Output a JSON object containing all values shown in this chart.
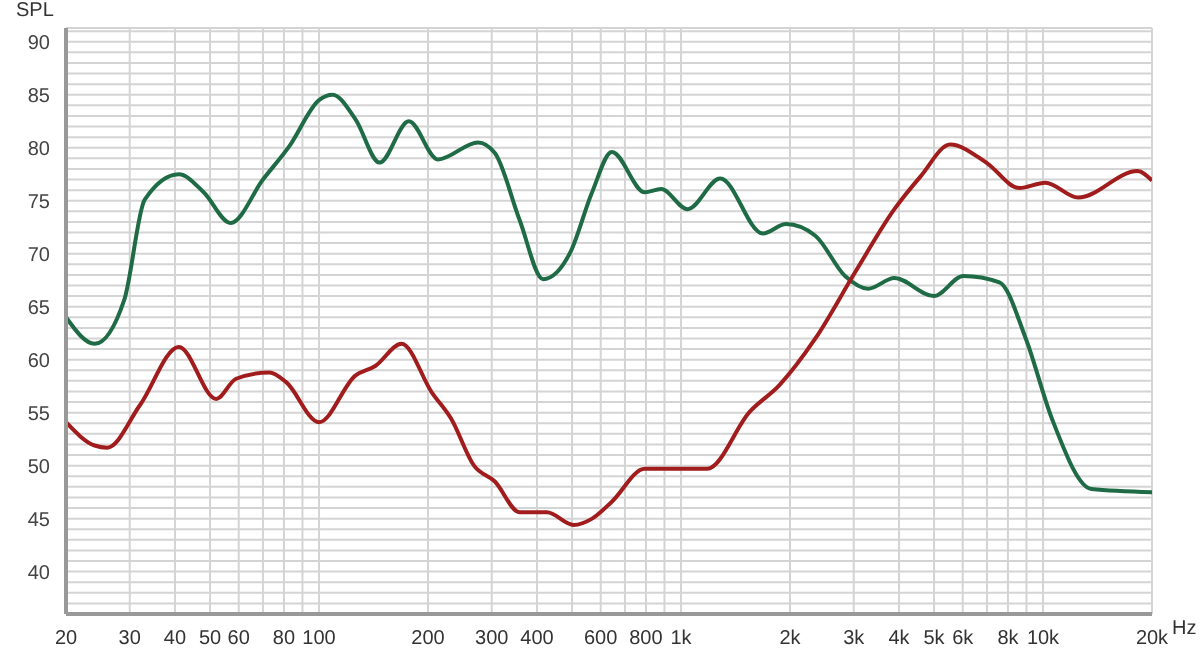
{
  "chart_data": {
    "type": "line",
    "ylabel": "SPL",
    "log": "x",
    "grid": true,
    "line_style": "solid",
    "xlim": [
      20,
      20000
    ],
    "ylim": [
      36,
      91.3
    ],
    "xticks": [
      20,
      30,
      40,
      50,
      60,
      {
        "value": 70,
        "label": null
      },
      80,
      {
        "value": 90,
        "label": null
      },
      100,
      200,
      300,
      400,
      {
        "value": 500,
        "label": null
      },
      600,
      {
        "value": 700,
        "label": null
      },
      800,
      {
        "value": 900,
        "label": null
      },
      {
        "value": 1000,
        "label": "1k"
      },
      {
        "value": 2000,
        "label": "2k"
      },
      {
        "value": 3000,
        "label": "3k"
      },
      {
        "value": 4000,
        "label": "4k"
      },
      {
        "value": 5000,
        "label": "5k"
      },
      {
        "value": 6000,
        "label": "6k"
      },
      {
        "value": 7000,
        "label": null
      },
      {
        "value": 8000,
        "label": "8k"
      },
      {
        "value": 9000,
        "label": null
      },
      {
        "value": 10000,
        "label": "10k"
      },
      {
        "value": 20000,
        "label": "20k"
      }
    ],
    "xlabel": "Hz",
    "yticks": [
      {
        "value": 37,
        "label": null
      },
      {
        "value": 38,
        "label": null
      },
      {
        "value": 39,
        "label": null
      },
      40,
      {
        "value": 41,
        "label": null
      },
      {
        "value": 42,
        "label": null
      },
      {
        "value": 43,
        "label": null
      },
      {
        "value": 44,
        "label": null
      },
      45,
      {
        "value": 46,
        "label": null
      },
      {
        "value": 47,
        "label": null
      },
      {
        "value": 48,
        "label": null
      },
      {
        "value": 49,
        "label": null
      },
      50,
      {
        "value": 51,
        "label": null
      },
      {
        "value": 52,
        "label": null
      },
      {
        "value": 53,
        "label": null
      },
      {
        "value": 54,
        "label": null
      },
      55,
      {
        "value": 56,
        "label": null
      },
      {
        "value": 57,
        "label": null
      },
      {
        "value": 58,
        "label": null
      },
      {
        "value": 59,
        "label": null
      },
      60,
      {
        "value": 61,
        "label": null
      },
      {
        "value": 62,
        "label": null
      },
      {
        "value": 63,
        "label": null
      },
      {
        "value": 64,
        "label": null
      },
      65,
      {
        "value": 66,
        "label": null
      },
      {
        "value": 67,
        "label": null
      },
      {
        "value": 68,
        "label": null
      },
      {
        "value": 69,
        "label": null
      },
      70,
      {
        "value": 71,
        "label": null
      },
      {
        "value": 72,
        "label": null
      },
      {
        "value": 73,
        "label": null
      },
      {
        "value": 74,
        "label": null
      },
      75,
      {
        "value": 76,
        "label": null
      },
      {
        "value": 77,
        "label": null
      },
      {
        "value": 78,
        "label": null
      },
      {
        "value": 79,
        "label": null
      },
      80,
      {
        "value": 81,
        "label": null
      },
      {
        "value": 82,
        "label": null
      },
      {
        "value": 83,
        "label": null
      },
      {
        "value": 84,
        "label": null
      },
      85,
      {
        "value": 86,
        "label": null
      },
      {
        "value": 87,
        "label": null
      },
      {
        "value": 88,
        "label": null
      },
      {
        "value": 89,
        "label": null
      },
      90,
      {
        "value": 91,
        "label": null
      }
    ],
    "series": [
      {
        "color": "#1e6b45",
        "x": [
          20,
          24,
          29,
          33,
          41,
          48,
          57,
          70,
          83,
          100,
          109,
          126,
          147,
          177,
          213,
          275,
          306,
          358,
          416,
          494,
          568,
          644,
          794,
          881,
          1042,
          1283,
          1683,
          1950,
          2350,
          2838,
          3288,
          3885,
          4990,
          6025,
          7580,
          8960,
          10590,
          13600,
          20000
        ],
        "values": [
          64.0,
          61.5,
          65.7,
          75.1,
          77.5,
          75.8,
          72.9,
          77.0,
          80.2,
          84.5,
          85.0,
          82.7,
          78.6,
          82.5,
          78.9,
          80.5,
          79.5,
          73.2,
          67.6,
          70.1,
          75.8,
          79.6,
          75.8,
          76.1,
          74.2,
          77.1,
          71.9,
          72.8,
          71.7,
          67.9,
          66.7,
          67.7,
          66.0,
          67.9,
          67.3,
          62.0,
          54.4,
          47.8,
          47.5
        ]
      },
      {
        "color": "#a11d1d",
        "x": [
          20,
          24,
          26,
          32,
          41,
          52,
          59,
          73,
          81,
          100,
          126,
          143,
          169,
          205,
          232,
          268,
          306,
          358,
          426,
          505,
          568,
          644,
          794,
          998,
          1180,
          1549,
          1870,
          2350,
          3020,
          3885,
          4590,
          5540,
          6970,
          8600,
          10150,
          12500,
          18230,
          20000
        ],
        "values": [
          54.1,
          51.9,
          51.7,
          55.7,
          61.2,
          56.3,
          58.2,
          58.8,
          57.9,
          54.1,
          58.5,
          59.4,
          61.5,
          56.9,
          54.4,
          50.0,
          48.5,
          45.6,
          45.6,
          44.4,
          45.0,
          46.6,
          49.7,
          49.7,
          49.7,
          55.1,
          57.6,
          62.0,
          68.2,
          74.2,
          77.3,
          80.3,
          78.6,
          76.2,
          76.7,
          75.3,
          77.8,
          76.9
        ]
      }
    ]
  }
}
